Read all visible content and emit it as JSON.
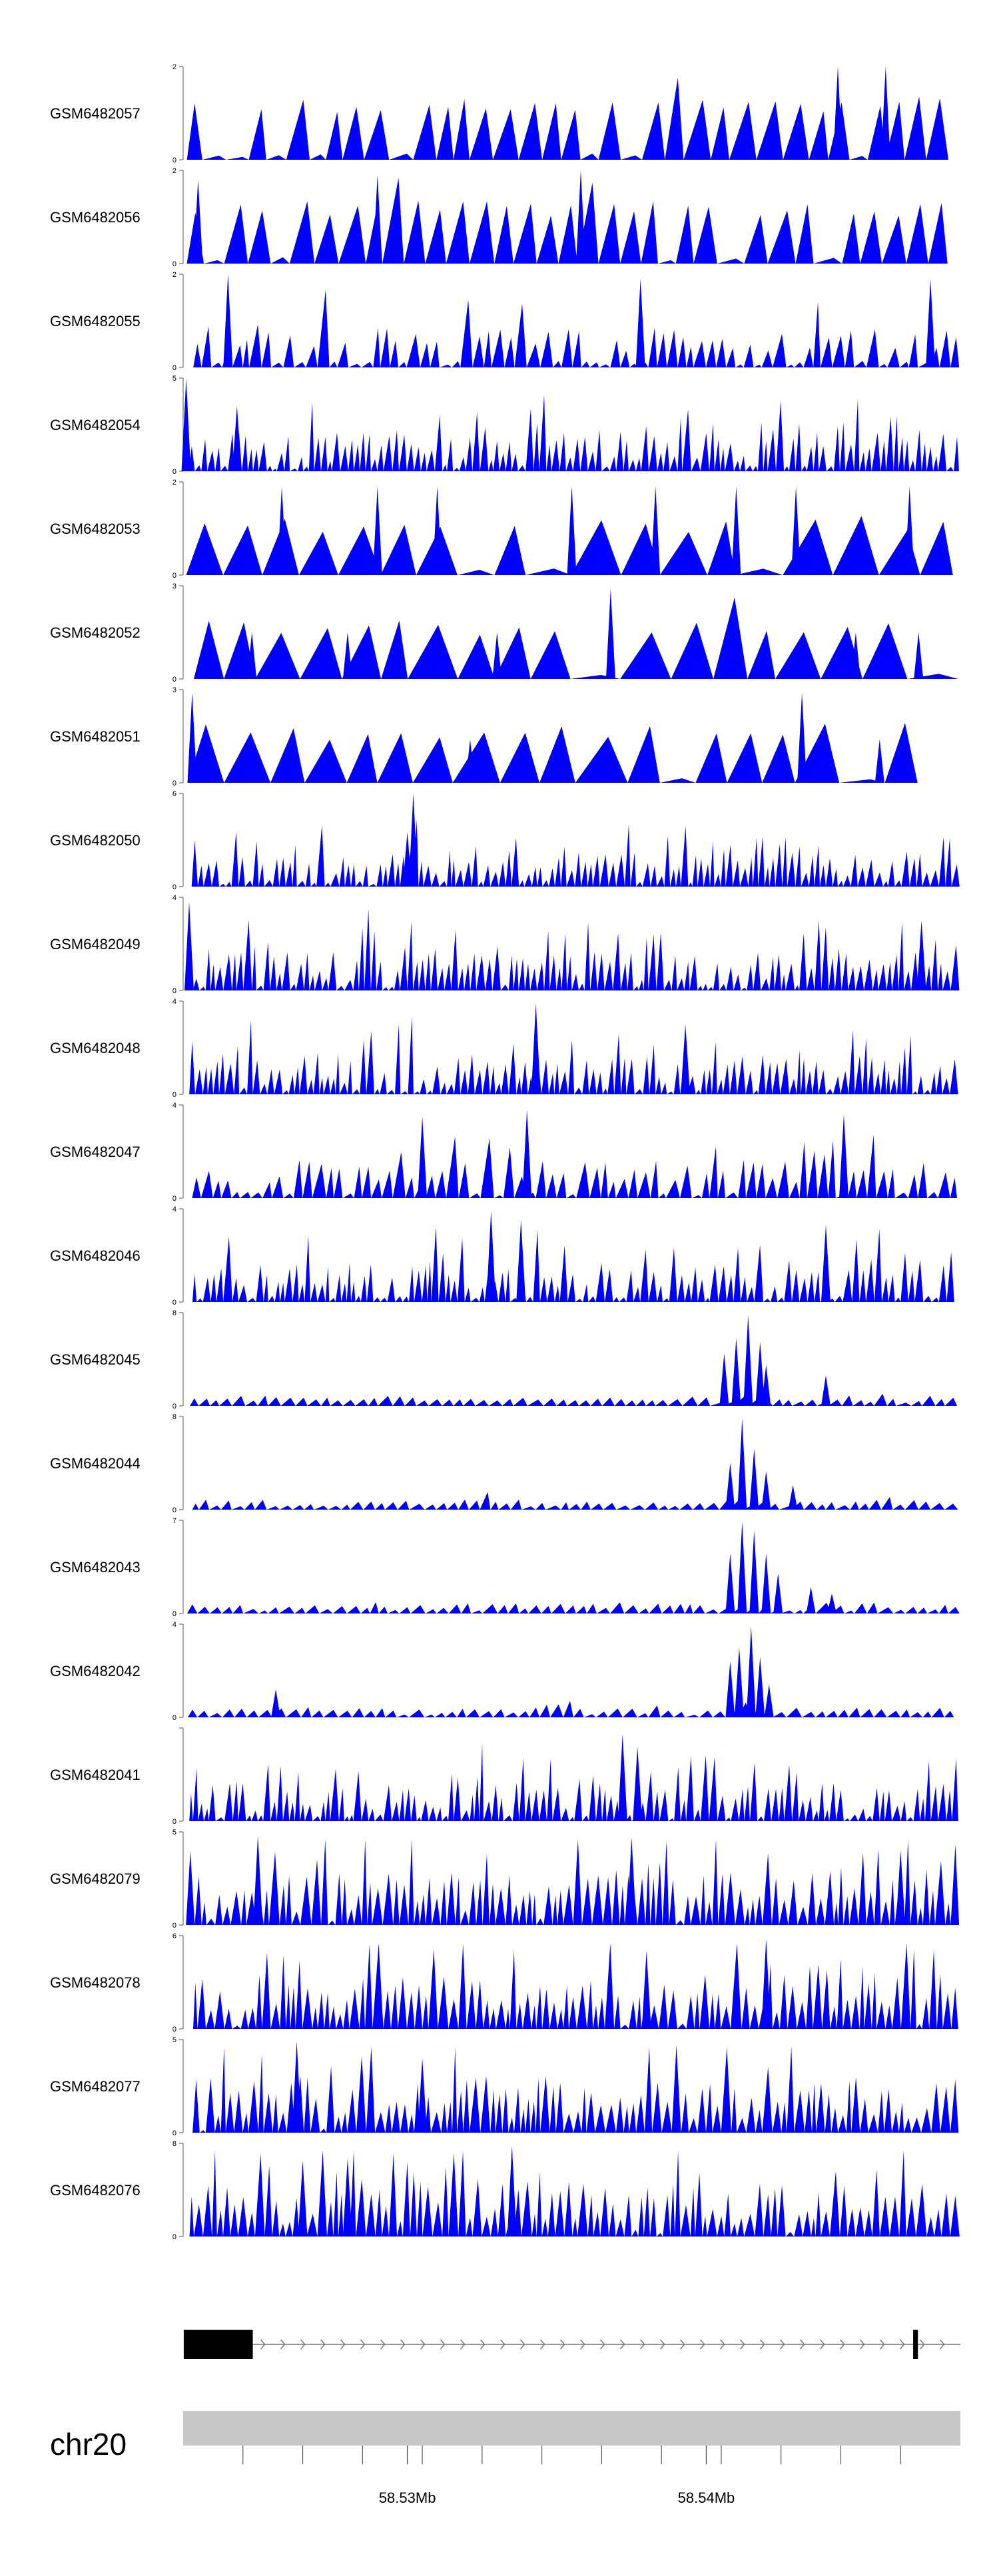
{
  "chart_data": {
    "type": "area",
    "title": "",
    "xlabel": "",
    "ylabel": "",
    "chromosome": "chr20",
    "xlim": [
      58.5225,
      58.5485
    ],
    "axis_ticks": [
      {
        "label": "58.53Mb",
        "value": 58.53
      },
      {
        "label": "58.54Mb",
        "value": 58.54
      }
    ],
    "colors": {
      "coverage": "#0000ff",
      "axis": "#555555",
      "exon": "#000000",
      "intron": "#777777",
      "ideogram": "#c8c8c8",
      "background": "#ffffff"
    },
    "gene_model": {
      "strand": "+",
      "start": 58.52252,
      "end": 58.5485,
      "exons": [
        [
          58.52252,
          58.52483
        ],
        [
          58.54692,
          58.54708
        ]
      ]
    },
    "tracks": [
      {
        "name": "GSM6482057",
        "ymin": "0",
        "ymax": "2",
        "ylim": [
          0,
          2
        ],
        "seed": 101,
        "style": "spaced",
        "peaks": [
          [
            58.5444,
            2
          ],
          [
            58.546,
            2
          ]
        ]
      },
      {
        "name": "GSM6482056",
        "ymin": "0",
        "ymax": "2",
        "ylim": [
          0,
          2
        ],
        "seed": 202,
        "style": "spaced",
        "peaks": [
          [
            58.5358,
            2
          ],
          [
            58.529,
            1.9
          ],
          [
            58.523,
            1.8
          ]
        ]
      },
      {
        "name": "GSM6482055",
        "ymin": "0",
        "ymax": "2",
        "ylim": [
          0,
          2
        ],
        "seed": 303,
        "style": "medium",
        "peaks": [
          [
            58.524,
            2
          ],
          [
            58.5378,
            1.9
          ],
          [
            58.5475,
            1.9
          ]
        ]
      },
      {
        "name": "GSM6482054",
        "ymin": "0",
        "ymax": "5",
        "ylim": [
          0,
          5
        ],
        "seed": 404,
        "style": "dense",
        "peaks": [
          [
            58.5226,
            5
          ],
          [
            58.5243,
            3.5
          ]
        ]
      },
      {
        "name": "GSM6482053",
        "ymin": "0",
        "ymax": "2",
        "ylim": [
          0,
          2
        ],
        "seed": 505,
        "style": "big",
        "peaks": [
          [
            58.5258,
            1.9
          ],
          [
            58.529,
            1.9
          ],
          [
            58.531,
            1.9
          ],
          [
            58.5355,
            1.9
          ],
          [
            58.5383,
            1.9
          ],
          [
            58.541,
            1.9
          ],
          [
            58.543,
            1.9
          ],
          [
            58.5468,
            1.9
          ]
        ]
      },
      {
        "name": "GSM6482052",
        "ymin": "0",
        "ymax": "3",
        "ylim": [
          0,
          3
        ],
        "seed": 606,
        "style": "big",
        "peaks": [
          [
            58.5248,
            1.5
          ],
          [
            58.528,
            1.5
          ],
          [
            58.533,
            1.5
          ],
          [
            58.5368,
            2.9
          ],
          [
            58.5411,
            1.5
          ],
          [
            58.545,
            1.5
          ],
          [
            58.5471,
            1.5
          ]
        ]
      },
      {
        "name": "GSM6482051",
        "ymin": "0",
        "ymax": "3",
        "ylim": [
          0,
          3
        ],
        "seed": 707,
        "style": "big",
        "peaks": [
          [
            58.5228,
            2.9
          ],
          [
            58.5233,
            1.6
          ],
          [
            58.5321,
            1.4
          ],
          [
            58.5432,
            2.9
          ],
          [
            58.5458,
            1.4
          ]
        ]
      },
      {
        "name": "GSM6482050",
        "ymin": "0",
        "ymax": "6",
        "ylim": [
          0,
          6
        ],
        "seed": 808,
        "style": "dense",
        "peaks": [
          [
            58.5302,
            6
          ],
          [
            58.53,
            3.5
          ]
        ]
      },
      {
        "name": "GSM6482049",
        "ymin": "0",
        "ymax": "4",
        "ylim": [
          0,
          4
        ],
        "seed": 909,
        "style": "dense",
        "peaks": [
          [
            58.5227,
            3.8
          ],
          [
            58.5472,
            3
          ]
        ]
      },
      {
        "name": "GSM6482048",
        "ymin": "0",
        "ymax": "4",
        "ylim": [
          0,
          4
        ],
        "seed": 1010,
        "style": "dense",
        "peaks": [
          [
            58.5343,
            3.9
          ],
          [
            58.5393,
            3
          ]
        ]
      },
      {
        "name": "GSM6482047",
        "ymin": "0",
        "ymax": "4",
        "ylim": [
          0,
          4
        ],
        "seed": 1111,
        "style": "medium",
        "peaks": [
          [
            58.5305,
            3.5
          ],
          [
            58.534,
            3.8
          ],
          [
            58.5446,
            3.6
          ]
        ]
      },
      {
        "name": "GSM6482046",
        "ymin": "0",
        "ymax": "4",
        "ylim": [
          0,
          4
        ],
        "seed": 1212,
        "style": "dense",
        "peaks": [
          [
            58.5328,
            3.9
          ],
          [
            58.5338,
            3.5
          ],
          [
            58.544,
            3.3
          ]
        ]
      },
      {
        "name": "GSM6482045",
        "ymin": "0",
        "ymax": "8",
        "ylim": [
          0,
          8
        ],
        "seed": 1313,
        "style": "sparse",
        "peaks": [
          [
            58.541,
            5.8
          ],
          [
            58.5406,
            4.5
          ],
          [
            58.5414,
            7.8
          ],
          [
            58.5418,
            5.5
          ],
          [
            58.542,
            3.5
          ],
          [
            58.544,
            2.6
          ]
        ]
      },
      {
        "name": "GSM6482044",
        "ymin": "0",
        "ymax": "8",
        "ylim": [
          0,
          8
        ],
        "seed": 1414,
        "style": "sparse",
        "peaks": [
          [
            58.5408,
            4
          ],
          [
            58.5412,
            7.8
          ],
          [
            58.5416,
            5.2
          ],
          [
            58.542,
            3.3
          ],
          [
            58.5429,
            2.1
          ]
        ]
      },
      {
        "name": "GSM6482043",
        "ymin": "0",
        "ymax": "7",
        "ylim": [
          0,
          7
        ],
        "seed": 1515,
        "style": "sparse",
        "peaks": [
          [
            58.5408,
            4.5
          ],
          [
            58.5412,
            6.9
          ],
          [
            58.5416,
            6.2
          ],
          [
            58.542,
            4.5
          ],
          [
            58.5424,
            3
          ],
          [
            58.5435,
            2
          ],
          [
            58.5442,
            1.5
          ]
        ]
      },
      {
        "name": "GSM6482042",
        "ymin": "0",
        "ymax": "4",
        "ylim": [
          0,
          4
        ],
        "seed": 1616,
        "style": "sparse",
        "peaks": [
          [
            58.5408,
            2.4
          ],
          [
            58.5411,
            3
          ],
          [
            58.5415,
            3.9
          ],
          [
            58.5418,
            2.6
          ],
          [
            58.5421,
            1.4
          ],
          [
            58.5256,
            1.2
          ]
        ]
      },
      {
        "name": "GSM6482041",
        "ymin": "0",
        "ymax": "",
        "ylim": [
          0,
          3
        ],
        "seed": 1717,
        "style": "dense",
        "peaks": [
          [
            58.5372,
            2.8
          ],
          [
            58.5377,
            2.4
          ]
        ]
      },
      {
        "name": "GSM6482079",
        "ymin": "0",
        "ymax": "5",
        "ylim": [
          0,
          5
        ],
        "seed": 1818,
        "style": "rich",
        "peaks": [
          [
            58.525,
            4.8
          ],
          [
            58.5375,
            4.7
          ],
          [
            58.5465,
            4
          ]
        ]
      },
      {
        "name": "GSM6482078",
        "ymin": "0",
        "ymax": "6",
        "ylim": [
          0,
          6
        ],
        "seed": 1919,
        "style": "rich",
        "peaks": [
          [
            58.542,
            5.8
          ],
          [
            58.538,
            5
          ]
        ]
      },
      {
        "name": "GSM6482077",
        "ymin": "0",
        "ymax": "5",
        "ylim": [
          0,
          5
        ],
        "seed": 2020,
        "style": "rich",
        "peaks": [
          [
            58.5263,
            4.9
          ],
          [
            58.539,
            4.7
          ],
          [
            58.5305,
            4
          ]
        ]
      },
      {
        "name": "GSM6482076",
        "ymin": "0",
        "ymax": "8",
        "ylim": [
          0,
          8
        ],
        "seed": 2121,
        "style": "rich",
        "peaks": [
          [
            58.5335,
            7.8
          ],
          [
            58.5265,
            6.5
          ],
          [
            58.528,
            6.7
          ]
        ]
      }
    ]
  }
}
